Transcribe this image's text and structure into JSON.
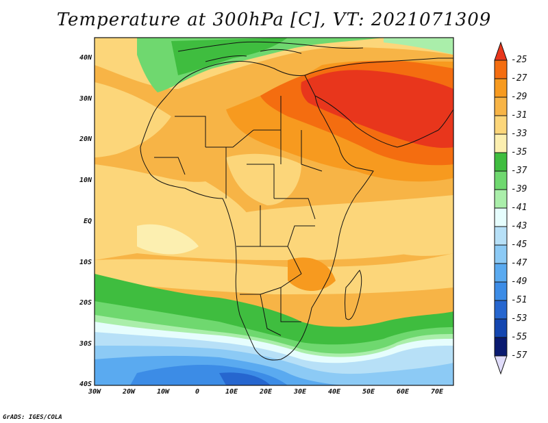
{
  "title": "Temperature at 300hPa [C], VT: 2021071309",
  "credit": "GrADS: IGES/COLA",
  "map": {
    "lat_labels": [
      "40N",
      "30N",
      "20N",
      "10N",
      "EQ",
      "10S",
      "20S",
      "30S",
      "40S"
    ],
    "lon_labels": [
      "30W",
      "20W",
      "10W",
      "0",
      "10E",
      "20E",
      "30E",
      "40E",
      "50E",
      "60E",
      "70E"
    ]
  },
  "colorbar": {
    "labels": [
      "-25",
      "-27",
      "-29",
      "-31",
      "-33",
      "-35",
      "-37",
      "-39",
      "-41",
      "-43",
      "-45",
      "-47",
      "-49",
      "-51",
      "-53",
      "-55",
      "-57"
    ],
    "colors": [
      "#e8361c",
      "#f46d10",
      "#f79a1f",
      "#f7b446",
      "#fcd67a",
      "#fcefb0",
      "#3fbd3f",
      "#6fd86f",
      "#aaeeaa",
      "#e6fdfd",
      "#b7e0f7",
      "#8ccaf5",
      "#5aaaf0",
      "#3c8ce6",
      "#2666cf",
      "#1446b0",
      "#0a1a70"
    ],
    "top_arrow_color": "#e8361c",
    "bottom_arrow_color": "#e0dcfa"
  }
}
